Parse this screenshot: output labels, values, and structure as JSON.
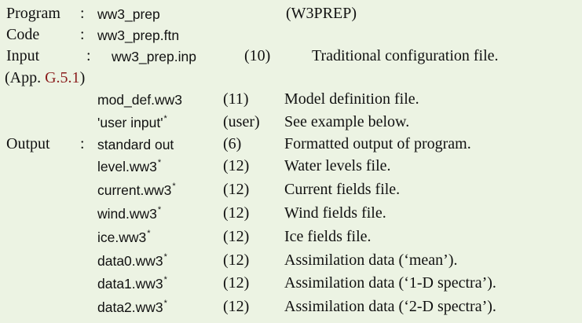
{
  "header": {
    "program_label": "Program",
    "program_sep": ":",
    "program_value": "ww3_prep",
    "program_tag": "(W3PREP)",
    "code_label": "Code",
    "code_sep": ":",
    "code_value": "ww3_prep.ftn",
    "input_label": "Input",
    "input_sep": ":",
    "output_label": "Output",
    "output_sep": ":"
  },
  "input_rows": [
    {
      "file": "ww3_prep.inp",
      "unit": "(10)",
      "desc": "Traditional configuration file."
    },
    {
      "file": "mod_def.ww3",
      "unit": "(11)",
      "desc": "Model definition file."
    },
    {
      "file": "'user input'",
      "star": "*",
      "unit": "(user)",
      "desc": "See example below."
    }
  ],
  "appendix": {
    "prefix": "(App. ",
    "ref": "G.5.1",
    "suffix": ")"
  },
  "output_rows": [
    {
      "file": "standard out",
      "unit": "(6)",
      "desc": "Formatted output of program."
    },
    {
      "file": "level.ww3",
      "star": "*",
      "unit": "(12)",
      "desc": "Water levels file."
    },
    {
      "file": "current.ww3",
      "star": "*",
      "unit": "(12)",
      "desc": "Current fields file."
    },
    {
      "file": "wind.ww3",
      "star": "*",
      "unit": "(12)",
      "desc": "Wind fields file."
    },
    {
      "file": "ice.ww3",
      "star": "*",
      "unit": "(12)",
      "desc": "Ice fields file."
    },
    {
      "file": "data0.ww3",
      "star": "*",
      "unit": "(12)",
      "desc": "Assimilation data (‘mean’)."
    },
    {
      "file": "data1.ww3",
      "star": "*",
      "unit": "(12)",
      "desc": "Assimilation data (‘1-D spectra’)."
    },
    {
      "file": "data2.ww3",
      "star": "*",
      "unit": "(12)",
      "desc": "Assimilation data (‘2-D spectra’)."
    }
  ]
}
